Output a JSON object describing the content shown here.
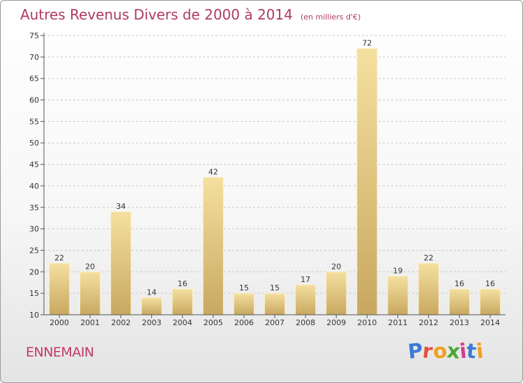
{
  "chart": {
    "title": "Autres Revenus Divers de 2000 à 2014",
    "unit_note": "(en milliers d'€)"
  },
  "commune": "ENNEMAIN",
  "brand": {
    "name": "Proxiti",
    "letter_colors": [
      "#3b7bd5",
      "#e8533a",
      "#f0a01e",
      "#4aa834",
      "#d43d8f",
      "#3b7bd5",
      "#f0a01e"
    ]
  },
  "colors": {
    "title": "#b03a5e",
    "bar_top": "#f5e0a0",
    "bar_bottom": "#c8a860",
    "grid": "#c8c8c8"
  },
  "chart_data": {
    "type": "bar",
    "title": "Autres Revenus Divers de 2000 à 2014",
    "subtitle": "(en milliers d'€)",
    "categories": [
      "2000",
      "2001",
      "2002",
      "2003",
      "2004",
      "2005",
      "2006",
      "2007",
      "2008",
      "2009",
      "2010",
      "2011",
      "2012",
      "2013",
      "2014"
    ],
    "values": [
      22,
      20,
      34,
      14,
      16,
      42,
      15,
      15,
      17,
      20,
      72,
      19,
      22,
      16,
      16
    ],
    "ylim": [
      10,
      75
    ],
    "yticks": [
      10,
      15,
      20,
      25,
      30,
      35,
      40,
      45,
      50,
      55,
      60,
      65,
      70,
      75
    ],
    "grid": "horizontal dashed",
    "data_labels": true
  }
}
